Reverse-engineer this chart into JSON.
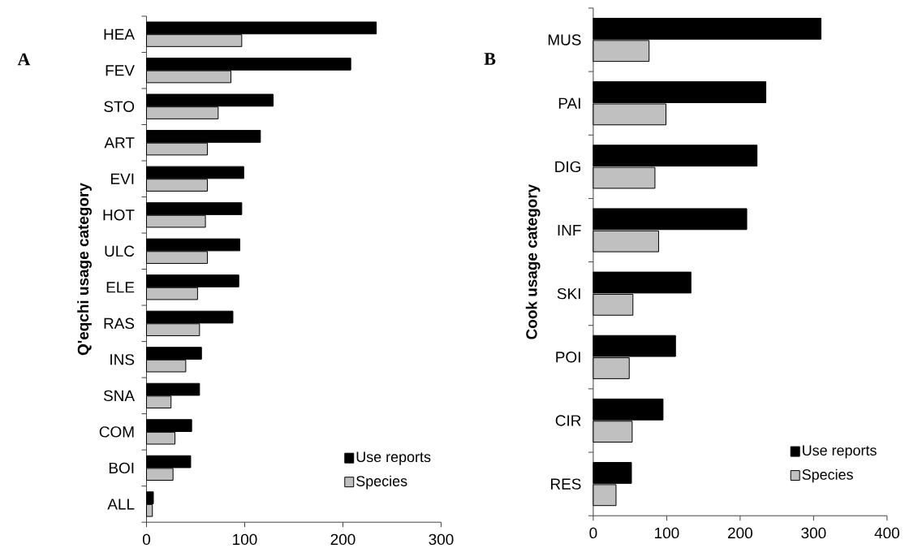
{
  "chart_data": [
    {
      "type": "bar",
      "orientation": "horizontal",
      "ylabel": "Q'eqchi usage category",
      "annotations": [
        "A"
      ],
      "legend": "bottom right",
      "categories": [
        "HEA",
        "FEV",
        "STO",
        "ART",
        "EVI",
        "HOT",
        "ULC",
        "ELE",
        "RAS",
        "INS",
        "SNA",
        "COM",
        "BOI",
        "ALL"
      ],
      "series": [
        {
          "name": "Use reports",
          "color": "#000000",
          "values": [
            234,
            208,
            129,
            116,
            99,
            97,
            95,
            94,
            88,
            56,
            54,
            46,
            45,
            7
          ]
        },
        {
          "name": "Species",
          "color": "#c0c0c0",
          "values": [
            97,
            86,
            73,
            62,
            62,
            60,
            62,
            52,
            54,
            40,
            25,
            29,
            27,
            6
          ]
        }
      ],
      "xlim": [
        0,
        300
      ],
      "xticks": [
        0,
        100,
        200,
        300
      ]
    },
    {
      "type": "bar",
      "orientation": "horizontal",
      "ylabel": "Cook usage category",
      "annotations": [
        "B"
      ],
      "legend": "bottom right",
      "categories": [
        "MUS",
        "PAI",
        "DIG",
        "INF",
        "SKI",
        "POI",
        "CIR",
        "RES"
      ],
      "series": [
        {
          "name": "Use reports",
          "color": "#000000",
          "values": [
            310,
            235,
            223,
            209,
            133,
            112,
            95,
            52
          ]
        },
        {
          "name": "Species",
          "color": "#c0c0c0",
          "values": [
            76,
            99,
            84,
            89,
            54,
            49,
            53,
            31
          ]
        }
      ],
      "xlim": [
        0,
        400
      ],
      "xticks": [
        0,
        100,
        200,
        300,
        400
      ]
    }
  ]
}
